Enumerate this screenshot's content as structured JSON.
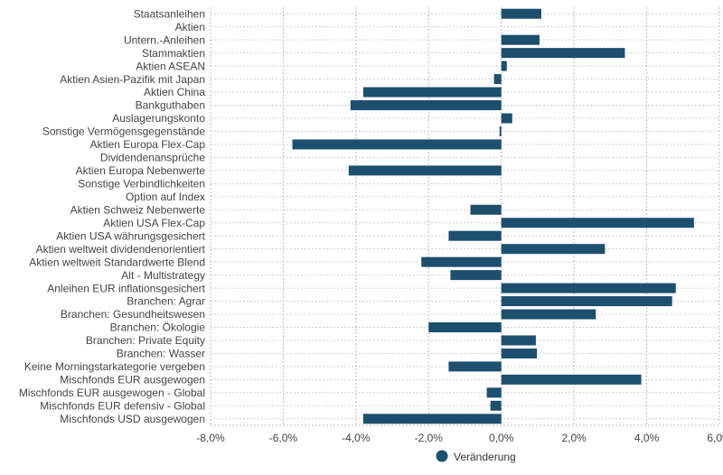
{
  "chart_data": {
    "type": "bar",
    "orientation": "horizontal",
    "categories": [
      "Staatsanleihen",
      "Aktien",
      "Untern.-Anleihen",
      "Stammaktien",
      "Aktien ASEAN",
      "Aktien Asien-Pazifik mit Japan",
      "Aktien China",
      "Bankguthaben",
      "Auslagerungskonto",
      "Sonstige Vermögensgegenstände",
      "Aktien Europa Flex-Cap",
      "Dividendenansprüche",
      "Aktien Europa Nebenwerte",
      "Sonstige Verbindlichkeiten",
      "Option auf Index",
      "Aktien Schweiz Nebenwerte",
      "Aktien USA Flex-Cap",
      "Aktien USA währungsgesichert",
      "Aktien weltweit dividendenorientiert",
      "Aktien weltweit Standardwerte Blend",
      "Alt - Multistrategy",
      "Anleihen EUR inflationsgesichert",
      "Branchen: Agrar",
      "Branchen: Gesundheitswesen",
      "Branchen: Ökologie",
      "Branchen: Private Equity",
      "Branchen: Wasser",
      "Keine Morningstarkategorie vergeben",
      "Mischfonds EUR ausgewogen",
      "Mischfonds EUR ausgewogen - Global",
      "Mischfonds EUR defensiv - Global",
      "Mischfonds USD ausgewogen"
    ],
    "series": [
      {
        "name": "Veränderung",
        "color": "#1d4f6e",
        "values": [
          1.1,
          0.0,
          1.05,
          3.4,
          0.15,
          -0.2,
          -3.8,
          -4.15,
          0.3,
          -0.05,
          -5.75,
          0.0,
          -4.2,
          0.0,
          0.0,
          -0.85,
          5.3,
          -1.45,
          2.85,
          -2.2,
          -1.4,
          4.8,
          4.7,
          2.6,
          -2.0,
          0.95,
          0.98,
          -1.45,
          3.85,
          -0.4,
          -0.3,
          -3.8
        ]
      }
    ],
    "xlim": [
      -8,
      6
    ],
    "xticks": [
      "-8,0%",
      "-6,0%",
      "-4,0%",
      "-2,0%",
      "0,0%",
      "2,0%",
      "4,0%",
      "6,0%"
    ],
    "grid": true,
    "legend_position": "bottom"
  }
}
